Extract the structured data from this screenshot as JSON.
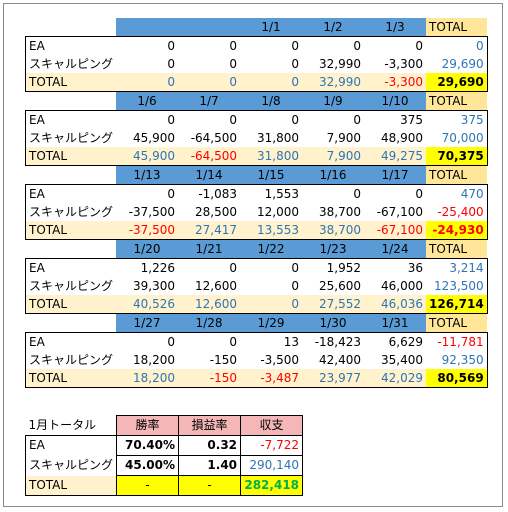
{
  "label_total": "TOTAL",
  "colors": {
    "header_blue": "#5b9bd5",
    "total_yellow": "#ffe699",
    "total_row": "#fff2cc",
    "grand_yellow": "#ffff00",
    "summary_header_pink": "#f4b6b6",
    "value_blue": "#2e75b6",
    "value_red": "#ff0000",
    "value_green": "#00b050"
  },
  "weeks": [
    {
      "dates": [
        "",
        "",
        "1/1",
        "1/2",
        "1/3"
      ],
      "rows": [
        {
          "label": "EA",
          "values": [
            "0",
            "0",
            "0",
            "0",
            "0"
          ],
          "total": "0"
        },
        {
          "label": "スキャルピング",
          "values": [
            "0",
            "0",
            "0",
            "32,990",
            "-3,300"
          ],
          "total": "29,690"
        }
      ],
      "totals": [
        "0",
        "0",
        "0",
        "32,990",
        "-3,300"
      ],
      "grand": "29,690"
    },
    {
      "dates": [
        "1/6",
        "1/7",
        "1/8",
        "1/9",
        "1/10"
      ],
      "rows": [
        {
          "label": "EA",
          "values": [
            "0",
            "0",
            "0",
            "0",
            "375"
          ],
          "total": "375"
        },
        {
          "label": "スキャルピング",
          "values": [
            "45,900",
            "-64,500",
            "31,800",
            "7,900",
            "48,900"
          ],
          "total": "70,000"
        }
      ],
      "totals": [
        "45,900",
        "-64,500",
        "31,800",
        "7,900",
        "49,275"
      ],
      "grand": "70,375"
    },
    {
      "dates": [
        "1/13",
        "1/14",
        "1/15",
        "1/16",
        "1/17"
      ],
      "rows": [
        {
          "label": "EA",
          "values": [
            "0",
            "-1,083",
            "1,553",
            "0",
            "0"
          ],
          "total": "470"
        },
        {
          "label": "スキャルピング",
          "values": [
            "-37,500",
            "28,500",
            "12,000",
            "38,700",
            "-67,100"
          ],
          "total": "-25,400"
        }
      ],
      "totals": [
        "-37,500",
        "27,417",
        "13,553",
        "38,700",
        "-67,100"
      ],
      "grand": "-24,930"
    },
    {
      "dates": [
        "1/20",
        "1/21",
        "1/22",
        "1/23",
        "1/24"
      ],
      "rows": [
        {
          "label": "EA",
          "values": [
            "1,226",
            "0",
            "0",
            "1,952",
            "36"
          ],
          "total": "3,214"
        },
        {
          "label": "スキャルピング",
          "values": [
            "39,300",
            "12,600",
            "0",
            "25,600",
            "46,000"
          ],
          "total": "123,500"
        }
      ],
      "totals": [
        "40,526",
        "12,600",
        "0",
        "27,552",
        "46,036"
      ],
      "grand": "126,714"
    },
    {
      "dates": [
        "1/27",
        "1/28",
        "1/29",
        "1/30",
        "1/31"
      ],
      "rows": [
        {
          "label": "EA",
          "values": [
            "0",
            "0",
            "13",
            "-18,423",
            "6,629"
          ],
          "total": "-11,781"
        },
        {
          "label": "スキャルピング",
          "values": [
            "18,200",
            "-150",
            "-3,500",
            "42,400",
            "35,400"
          ],
          "total": "92,350"
        }
      ],
      "totals": [
        "18,200",
        "-150",
        "-3,487",
        "23,977",
        "42,029"
      ],
      "grand": "80,569"
    }
  ],
  "summary": {
    "title": "1月トータル",
    "headers": [
      "勝率",
      "損益率",
      "収支"
    ],
    "rows": [
      {
        "label": "EA",
        "win_rate": "70.40%",
        "pl_ratio": "0.32",
        "balance": "-7,722"
      },
      {
        "label": "スキャルピング",
        "win_rate": "45.00%",
        "pl_ratio": "1.40",
        "balance": "290,140"
      }
    ],
    "total": {
      "label": "TOTAL",
      "win_rate": "-",
      "pl_ratio": "-",
      "balance": "282,418"
    }
  }
}
